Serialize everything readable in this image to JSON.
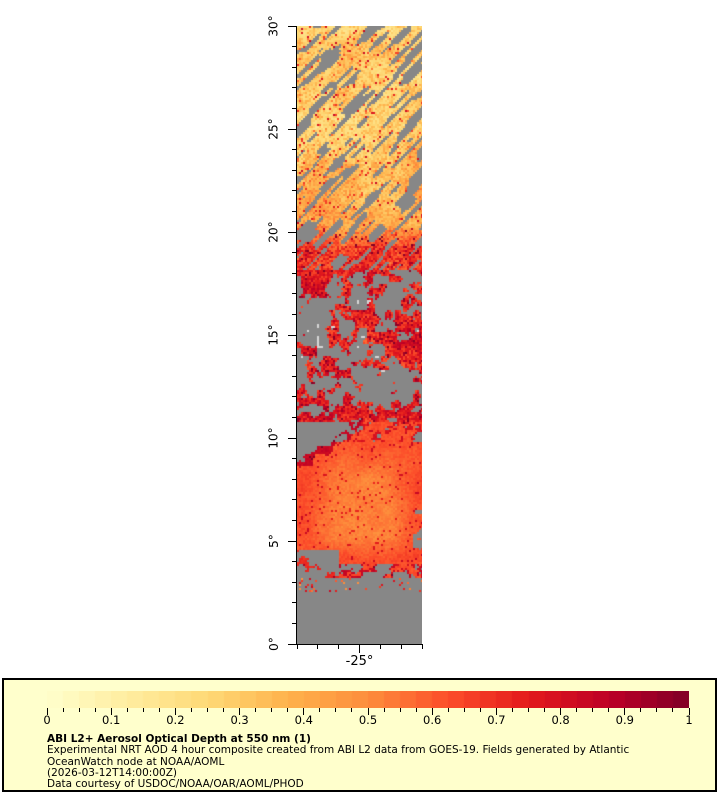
{
  "page": {
    "background": "#ffffff"
  },
  "map": {
    "x_axis": {
      "min": -28,
      "max": -22,
      "tick_step": 1,
      "major_lons": [
        -25
      ],
      "degree_suffix": "°"
    },
    "y_axis": {
      "min": 0,
      "max": 30,
      "tick_step": 1,
      "major_step": 5,
      "degree_suffix": "°"
    },
    "nodata_color": "#878787",
    "cloud_patch_color": "#d6d6d6"
  },
  "colorbar": {
    "min": 0,
    "max": 1,
    "segments": 40,
    "minor_step": 0.025,
    "ticks": [
      {
        "v": 0.0,
        "label": "0"
      },
      {
        "v": 0.1,
        "label": "0.1"
      },
      {
        "v": 0.2,
        "label": "0.2"
      },
      {
        "v": 0.3,
        "label": "0.3"
      },
      {
        "v": 0.4,
        "label": "0.4"
      },
      {
        "v": 0.5,
        "label": "0.5"
      },
      {
        "v": 0.6,
        "label": "0.6"
      },
      {
        "v": 0.7,
        "label": "0.7"
      },
      {
        "v": 0.8,
        "label": "0.8"
      },
      {
        "v": 0.9,
        "label": "0.9"
      },
      {
        "v": 1.0,
        "label": "1"
      }
    ],
    "colormap_name": "YlOrRd",
    "colormap_stops": [
      [
        255,
        255,
        204
      ],
      [
        255,
        237,
        160
      ],
      [
        254,
        217,
        118
      ],
      [
        254,
        178,
        76
      ],
      [
        253,
        141,
        60
      ],
      [
        252,
        78,
        42
      ],
      [
        227,
        26,
        28
      ],
      [
        189,
        0,
        38
      ],
      [
        128,
        0,
        38
      ]
    ]
  },
  "legend": {
    "background": "#ffffcc",
    "title": "ABI L2+ Aerosol Optical Depth at 550 nm (1)",
    "lines": [
      "Experimental NRT AOD 4 hour composite created from ABI L2 data from GOES-19. Fields generated by Atlantic",
      "OceanWatch node at NOAA/AOML",
      "(2026-03-12T14:00:00Z)",
      "Data courtesy of USDOC/NOAA/OAR/AOML/PHOD"
    ]
  },
  "chart_data": {
    "type": "heatmap",
    "title": "ABI L2+ Aerosol Optical Depth at 550 nm (1)",
    "subtitle": "Experimental NRT AOD 4 hour composite created from ABI L2 data from GOES-19. Fields generated by Atlantic OceanWatch node at NOAA/AOML",
    "timestamp": "(2026-03-12T14:00:00Z)",
    "credit": "Data courtesy of USDOC/NOAA/OAR/AOML/PHOD",
    "extent": {
      "lon": [
        -28,
        -22
      ],
      "lat": [
        0,
        30
      ]
    },
    "x_ticks": [
      "-25°"
    ],
    "y_ticks": [
      "0°",
      "5°",
      "10°",
      "15°",
      "20°",
      "25°",
      "30°"
    ],
    "value_range": [
      0,
      1
    ],
    "colormap": "YlOrRd",
    "legend_position": "bottom",
    "regions": [
      {
        "lat_range": [
          19.3,
          30.0
        ],
        "type": "speckled_field",
        "aod_range": [
          0.1,
          0.5
        ],
        "description": "pale yellow-orange dust field with diagonal gray cloud streaks, denser clouds near 30N and on east side"
      },
      {
        "lat_range": [
          18.2,
          19.3
        ],
        "type": "transition",
        "aod_range": [
          0.4,
          0.9
        ],
        "description": "dense orange-red transition band"
      },
      {
        "lat_range": [
          10.8,
          18.2
        ],
        "type": "broken",
        "aod_range": [
          0.45,
          1.0
        ],
        "description": "mostly gray no-data with orange/red/dark-red streaks and a few light-gray cloud patches"
      },
      {
        "lat_range": [
          3.2,
          10.8
        ],
        "type": "plume",
        "aod_range": [
          0.42,
          0.85
        ],
        "description": "large smooth Saharan dust plume, lighter orange core with red rim"
      },
      {
        "lat_range": [
          0.0,
          3.2
        ],
        "type": "nodata",
        "aod_range": null,
        "description": "gray no-data with a few colored speckles near 3N"
      }
    ]
  }
}
